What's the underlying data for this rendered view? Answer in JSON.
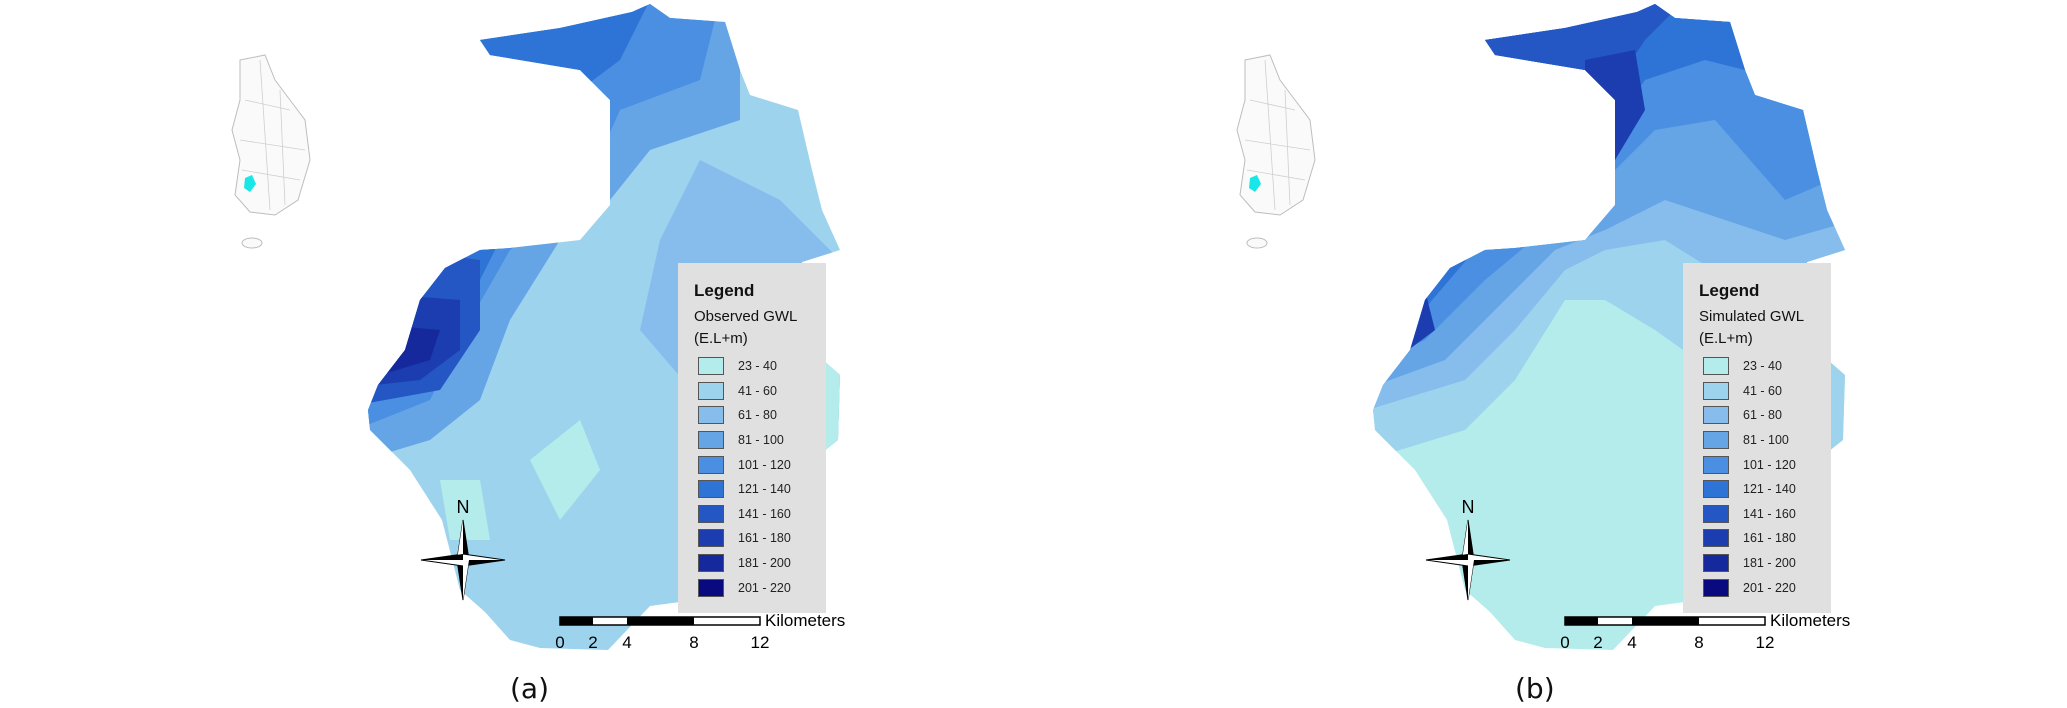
{
  "panels": [
    {
      "caption": "(a)",
      "legend_title": "Legend",
      "legend_line1": "Observed GWL",
      "legend_line2": "(E.L+m)",
      "north_label": "N",
      "scale_unit": "Kilometers",
      "scale_ticks": [
        "0",
        "2",
        "4",
        "8",
        "12"
      ]
    },
    {
      "caption": "(b)",
      "legend_title": "Legend",
      "legend_line1": "Simulated GWL",
      "legend_line2": "(E.L+m)",
      "north_label": "N",
      "scale_unit": "Kilometers",
      "scale_ticks": [
        "0",
        "2",
        "4",
        "8",
        "12"
      ]
    }
  ],
  "legend_classes": [
    {
      "range": "23 - 40",
      "color": "#b4ecec"
    },
    {
      "range": "41 - 60",
      "color": "#9ed3ee"
    },
    {
      "range": "61 - 80",
      "color": "#86bdec"
    },
    {
      "range": "81 - 100",
      "color": "#65a5e6"
    },
    {
      "range": "101 - 120",
      "color": "#4a8fe2"
    },
    {
      "range": "121 - 140",
      "color": "#2e73d6"
    },
    {
      "range": "141 - 160",
      "color": "#2456c4"
    },
    {
      "range": "161 - 180",
      "color": "#1c3db0"
    },
    {
      "range": "181 - 200",
      "color": "#15289c"
    },
    {
      "range": "201 - 220",
      "color": "#0a0a80"
    }
  ],
  "inset_highlight_color": "#19e6e6"
}
